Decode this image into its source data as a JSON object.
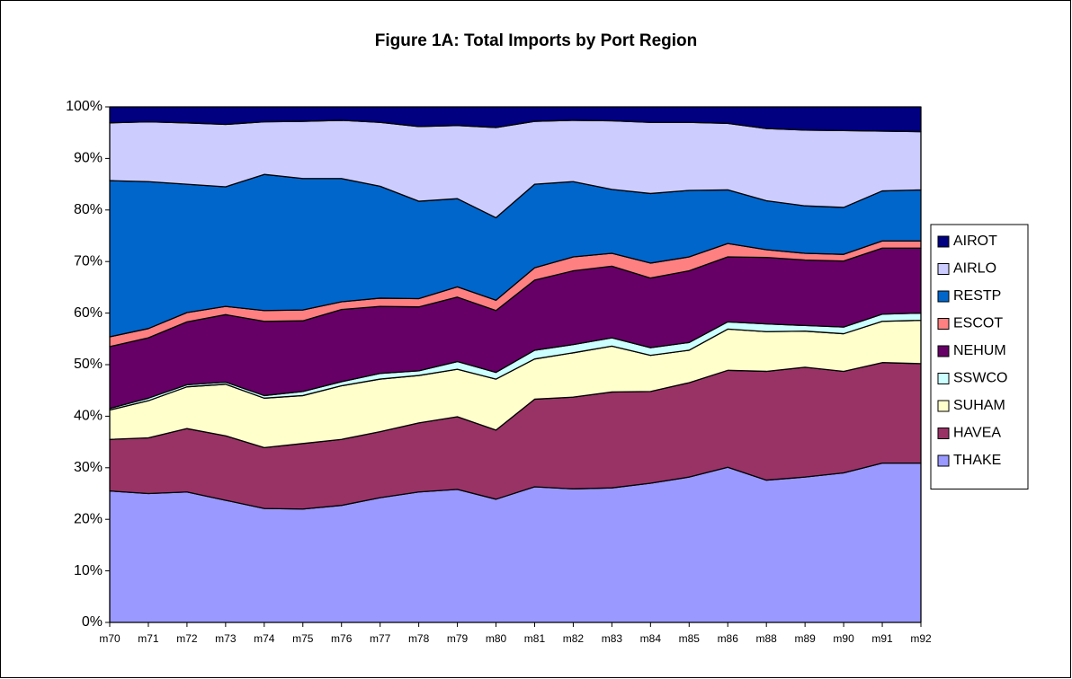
{
  "chart_data": {
    "type": "stacked_area_100",
    "title": "Figure 1A: Total Imports by Port Region",
    "categories": [
      "m70",
      "m71",
      "m72",
      "m73",
      "m74",
      "m75",
      "m76",
      "m77",
      "m78",
      "m79",
      "m80",
      "m81",
      "m82",
      "m83",
      "m84",
      "m85",
      "m86",
      "m88",
      "m89",
      "m90",
      "m91",
      "m92"
    ],
    "series": [
      {
        "name": "THAKE",
        "color": "#9999ff",
        "values": [
          25.5,
          25.0,
          25.3,
          23.7,
          22.1,
          22.0,
          22.7,
          24.2,
          25.3,
          25.8,
          23.9,
          26.3,
          25.9,
          26.1,
          27.0,
          28.2,
          30.1,
          27.6,
          28.2,
          29.0,
          30.9,
          30.9
        ]
      },
      {
        "name": "HAVEA",
        "color": "#993366",
        "values": [
          10.0,
          10.8,
          12.3,
          12.5,
          11.8,
          12.7,
          12.8,
          12.8,
          13.4,
          14.1,
          13.4,
          17.0,
          17.8,
          18.6,
          17.8,
          18.3,
          18.8,
          21.1,
          21.3,
          19.7,
          19.5,
          19.3
        ]
      },
      {
        "name": "SUHAM",
        "color": "#ffffcc",
        "values": [
          5.7,
          7.2,
          8.1,
          10.0,
          9.6,
          9.3,
          10.4,
          10.2,
          9.2,
          9.2,
          9.9,
          7.8,
          8.6,
          8.9,
          7.0,
          6.3,
          8.0,
          7.7,
          7.0,
          7.3,
          8.0,
          8.4
        ]
      },
      {
        "name": "SSWCO",
        "color": "#ccffff",
        "values": [
          0.3,
          0.5,
          0.4,
          0.4,
          0.5,
          0.8,
          0.8,
          1.1,
          0.9,
          1.5,
          1.3,
          1.7,
          1.6,
          1.6,
          1.5,
          1.5,
          1.4,
          1.5,
          1.1,
          1.3,
          1.4,
          1.4
        ]
      },
      {
        "name": "NEHUM",
        "color": "#660066",
        "values": [
          12.0,
          11.7,
          12.2,
          13.1,
          14.4,
          13.7,
          14.0,
          13.0,
          12.4,
          12.5,
          12.0,
          13.6,
          14.3,
          13.9,
          13.5,
          13.9,
          12.6,
          12.9,
          12.7,
          12.8,
          12.8,
          12.6
        ]
      },
      {
        "name": "ESCOT",
        "color": "#ff8080",
        "values": [
          1.9,
          1.8,
          1.8,
          1.6,
          2.1,
          2.1,
          1.5,
          1.6,
          1.6,
          2.0,
          2.0,
          2.4,
          2.7,
          2.5,
          2.9,
          2.7,
          2.6,
          1.5,
          1.3,
          1.3,
          1.4,
          1.4
        ]
      },
      {
        "name": "RESTP",
        "color": "#0066cc",
        "values": [
          30.3,
          28.5,
          24.9,
          23.2,
          26.4,
          25.5,
          23.9,
          21.7,
          18.9,
          17.1,
          16.0,
          16.2,
          14.6,
          12.4,
          13.5,
          12.9,
          10.4,
          9.5,
          9.2,
          9.1,
          9.7,
          9.9
        ]
      },
      {
        "name": "AIRLO",
        "color": "#ccccff",
        "values": [
          11.2,
          11.6,
          11.9,
          12.1,
          10.2,
          11.1,
          11.3,
          12.4,
          14.5,
          14.2,
          17.5,
          12.2,
          11.9,
          13.3,
          13.8,
          13.2,
          12.9,
          14.0,
          14.7,
          14.9,
          11.6,
          11.3
        ]
      },
      {
        "name": "AIROT",
        "color": "#000080",
        "values": [
          3.1,
          2.9,
          3.1,
          3.4,
          2.9,
          2.8,
          2.6,
          3.0,
          3.8,
          3.6,
          4.0,
          2.8,
          2.6,
          2.7,
          3.0,
          3.0,
          3.2,
          4.2,
          4.5,
          4.6,
          4.7,
          4.8
        ]
      }
    ],
    "ylim": [
      0,
      100
    ],
    "yticks": [
      {
        "value": 0,
        "label": "0%"
      },
      {
        "value": 10,
        "label": "10%"
      },
      {
        "value": 20,
        "label": "20%"
      },
      {
        "value": 30,
        "label": "30%"
      },
      {
        "value": 40,
        "label": "40%"
      },
      {
        "value": 50,
        "label": "50%"
      },
      {
        "value": 60,
        "label": "60%"
      },
      {
        "value": 70,
        "label": "70%"
      },
      {
        "value": 80,
        "label": "80%"
      },
      {
        "value": 90,
        "label": "90%"
      },
      {
        "value": 100,
        "label": "100%"
      }
    ],
    "grid": false,
    "legend": "right"
  }
}
